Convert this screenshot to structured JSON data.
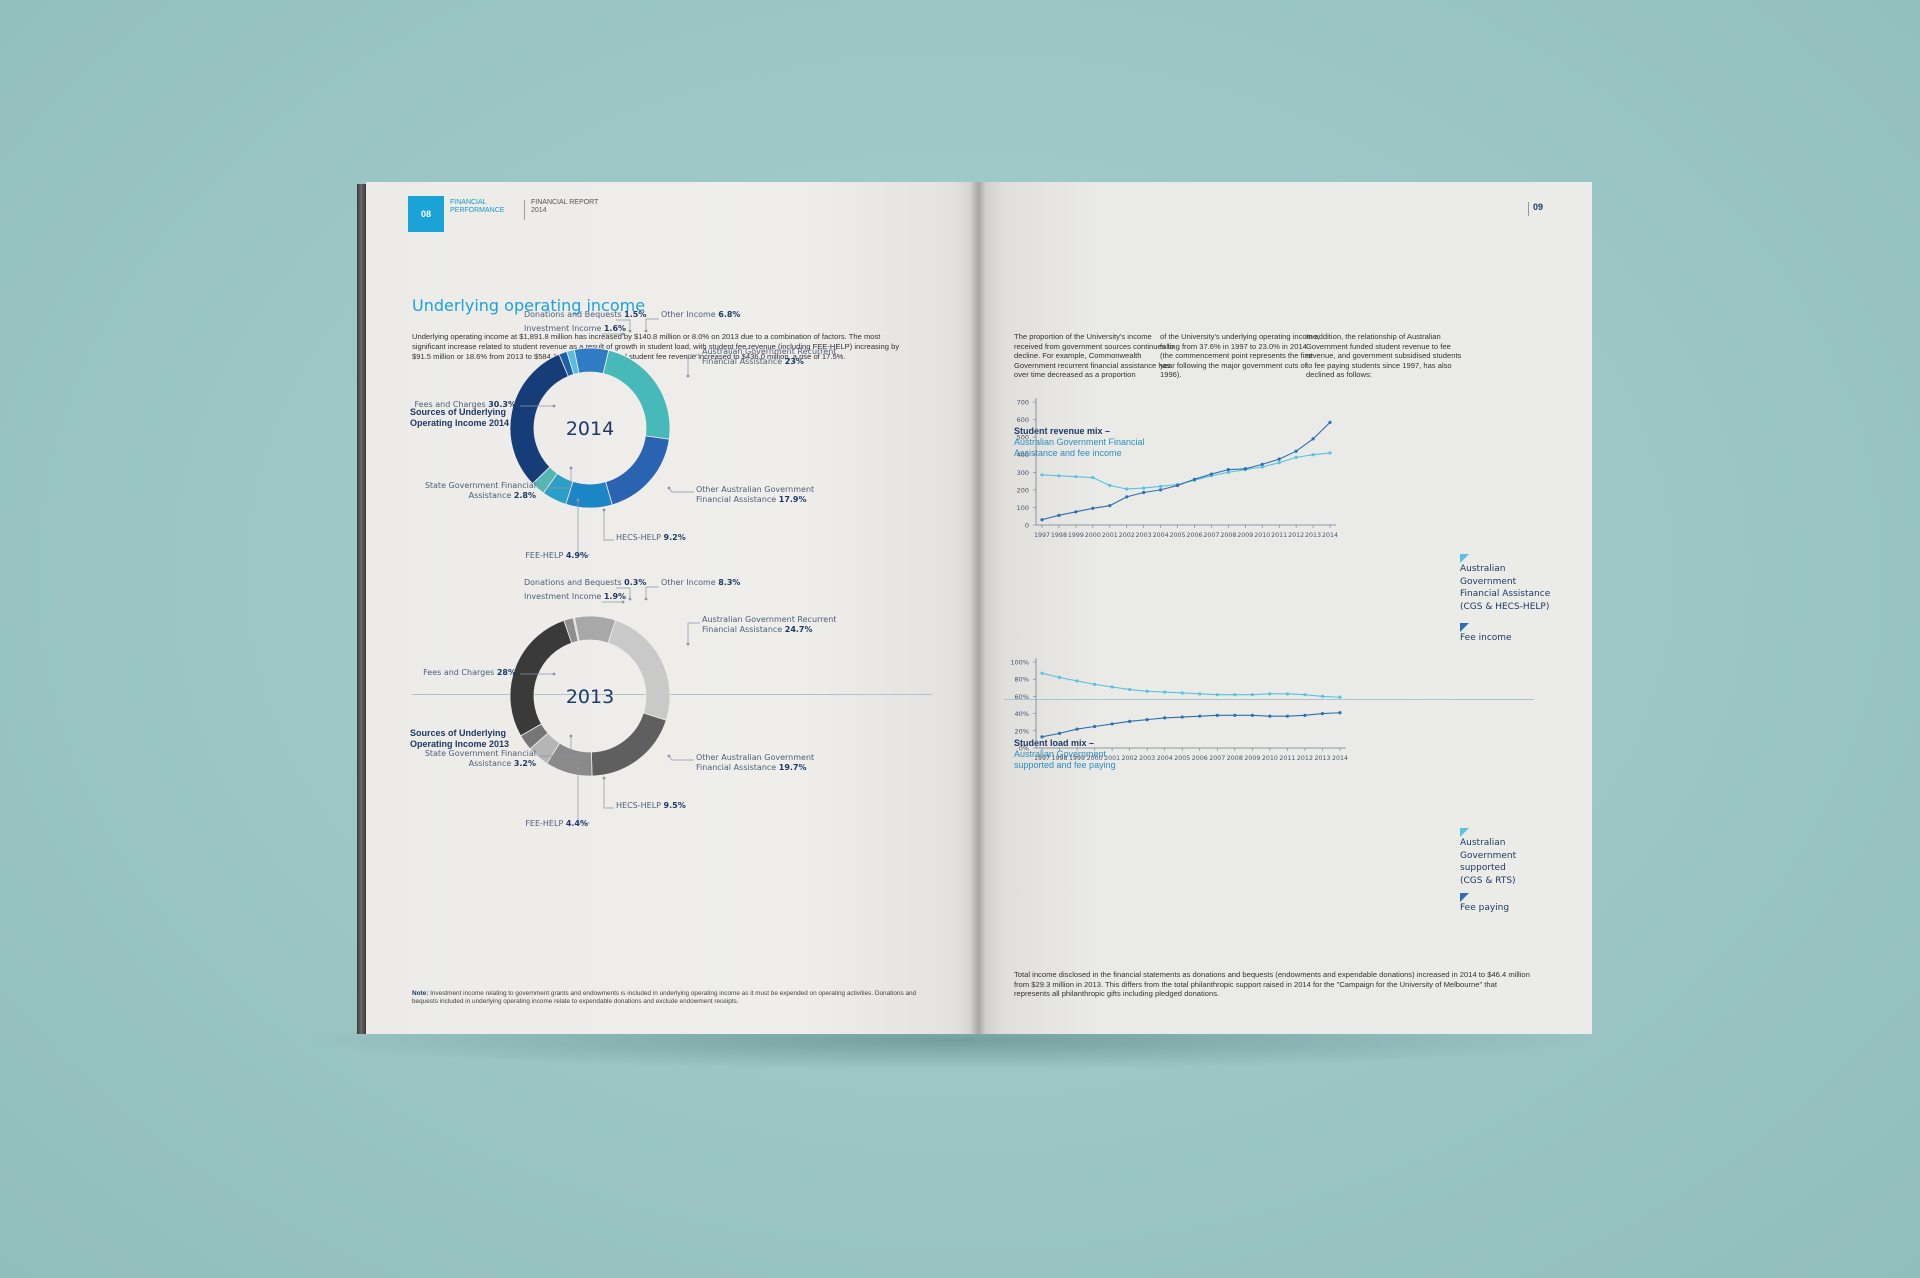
{
  "left_page": {
    "page_number": "08",
    "section": "FINANCIAL PERFORMANCE",
    "report": "FINANCIAL REPORT 2014",
    "heading": "Underlying operating income",
    "intro": "Underlying operating income at $1,891.8 million has increased by $140.8 million or 8.0% on 2013 due to a combination of factors. The most significant increase related to student revenue as a result of growth in student load, with student fee revenue (including FEE-HELP) increasing by $91.5 million or 18.6% from 2013 to $584.1 million. International student fee revenue increased to $436.0 million, a rise of 17.5%.",
    "note_label": "Note:",
    "note_text": "Investment income relating to government grants and endowments is included in underlying operating income as it must be expended on operating activities. Donations and bequests included in underlying operating income relate to expendable donations and exclude endowment receipts."
  },
  "right_page": {
    "page_number": "09",
    "col1": "The proportion of the University's income received from government sources continues to decline. For example, Commonwealth Government recurrent financial assistance has over time decreased as a proportion",
    "col2": "of the University's underlying operating income, falling from 37.6% in 1997 to 23.0% in 2014 (the commencement point represents the first year following the major government cuts of 1996).",
    "col3": "In addition, the relationship of Australian Government funded student revenue to fee revenue, and government subsidised students to fee paying students since 1997, has also declined as follows:",
    "bottom_text": "Total income disclosed in the financial statements as donations and bequests (endowments and expendable donations) increased in 2014 to $46.4 million from $29.3 million in 2013. This differs from the total philanthropic support raised in 2014 for the \"Campaign for the University of Melbourne\" that represents all philanthropic gifts including pledged donations."
  },
  "colors": {
    "accent": "#1aa3d6",
    "navy": "#1d3a66",
    "teal": "#4bb8b8",
    "light_blue": "#58c2e0",
    "line_dark": "#2d6fb0"
  },
  "chart_data": [
    {
      "type": "pie",
      "title_line1": "Sources of Underlying",
      "title_line2": "Operating Income 2014",
      "center_label": "2014",
      "slices": [
        {
          "label": "Other Income",
          "value": 6.8,
          "color": "#2f7cc4"
        },
        {
          "label": "Australian Government Recurrent Financial Assistance",
          "value": 23,
          "color": "#48b9b9"
        },
        {
          "label": "Other Australian Government Financial Assistance",
          "value": 17.9,
          "color": "#2a63b0"
        },
        {
          "label": "HECS-HELP",
          "value": 9.2,
          "color": "#1c85c6"
        },
        {
          "label": "FEE-HELP",
          "value": 4.9,
          "color": "#2c9ec8"
        },
        {
          "label": "State Government Financial Assistance",
          "value": 2.8,
          "color": "#56b6b4"
        },
        {
          "label": "Fees and Charges",
          "value": 30.3,
          "color": "#173d78"
        },
        {
          "label": "Investment Income",
          "value": 1.6,
          "color": "#1f5fa8"
        },
        {
          "label": "Donations and Bequests",
          "value": 1.5,
          "color": "#58bde0"
        }
      ],
      "labels": [
        {
          "name": "Donations and Bequests",
          "value": "1.5%"
        },
        {
          "name": "Investment Income",
          "value": "1.6%"
        },
        {
          "name": "Other Income",
          "value": "6.8%"
        },
        {
          "name": "Australian Government Recurrent",
          "name2": "Financial Assistance",
          "value": "23%"
        },
        {
          "name": "Fees and Charges",
          "value": "30.3%"
        },
        {
          "name": "Other Australian Government",
          "name2": "Financial Assistance",
          "value": "17.9%"
        },
        {
          "name": "State Government Financial",
          "name2": "Assistance",
          "value": "2.8%"
        },
        {
          "name": "HECS-HELP",
          "value": "9.2%"
        },
        {
          "name": "FEE-HELP",
          "value": "4.9%"
        }
      ]
    },
    {
      "type": "pie",
      "title_line1": "Sources of Underlying",
      "title_line2": "Operating Income 2013",
      "center_label": "2013",
      "slices": [
        {
          "label": "Other Income",
          "value": 8.3,
          "color": "#a8a8a8"
        },
        {
          "label": "Australian Government Recurrent Financial Assistance",
          "value": 24.7,
          "color": "#c9c9c9"
        },
        {
          "label": "Other Australian Government Financial Assistance",
          "value": 19.7,
          "color": "#5f5f5f"
        },
        {
          "label": "HECS-HELP",
          "value": 9.5,
          "color": "#8a8a8a"
        },
        {
          "label": "FEE-HELP",
          "value": 4.4,
          "color": "#b5b5b5"
        },
        {
          "label": "State Government Financial Assistance",
          "value": 3.2,
          "color": "#767676"
        },
        {
          "label": "Fees and Charges",
          "value": 28,
          "color": "#3a3a3a"
        },
        {
          "label": "Investment Income",
          "value": 1.9,
          "color": "#8f8f8f"
        },
        {
          "label": "Donations and Bequests",
          "value": 0.3,
          "color": "#cfcfcf"
        }
      ],
      "labels": [
        {
          "name": "Donations and Bequests",
          "value": "0.3%"
        },
        {
          "name": "Investment Income",
          "value": "1.9%"
        },
        {
          "name": "Other Income",
          "value": "8.3%"
        },
        {
          "name": "Australian Government Recurrent",
          "name2": "Financial Assistance",
          "value": "24.7%"
        },
        {
          "name": "Fees and Charges",
          "value": "28%"
        },
        {
          "name": "Other Australian Government",
          "name2": "Financial Assistance",
          "value": "19.7%"
        },
        {
          "name": "State Government Financial",
          "name2": "Assistance",
          "value": "3.2%"
        },
        {
          "name": "HECS-HELP",
          "value": "9.5%"
        },
        {
          "name": "FEE-HELP",
          "value": "4.4%"
        }
      ]
    },
    {
      "type": "line",
      "title": "Student revenue mix –",
      "subtitle_line1": "Australian Government Financial",
      "subtitle_line2": "Assistance and fee income",
      "x": [
        "1997",
        "1998",
        "1999",
        "2000",
        "2001",
        "2002",
        "2003",
        "2004",
        "2005",
        "2006",
        "2007",
        "2008",
        "2009",
        "2010",
        "2011",
        "2012",
        "2013",
        "2014"
      ],
      "yticks": [
        "0",
        "100",
        "200",
        "300",
        "400",
        "500",
        "600",
        "700"
      ],
      "ylim": [
        0,
        700
      ],
      "series": [
        {
          "legend_line1": "Australian",
          "legend_line2": "Government",
          "legend_line3": "Financial Assistance",
          "legend_line4": "(CGS & HECS-HELP)",
          "color": "#58c2e0",
          "values": [
            285,
            280,
            275,
            270,
            225,
            205,
            210,
            220,
            230,
            255,
            280,
            300,
            315,
            330,
            355,
            385,
            400,
            410
          ]
        },
        {
          "legend_line1": "Fee income",
          "color": "#2d6fb0",
          "values": [
            30,
            55,
            75,
            95,
            110,
            160,
            185,
            200,
            225,
            260,
            290,
            315,
            320,
            345,
            375,
            420,
            490,
            584
          ]
        }
      ]
    },
    {
      "type": "line",
      "title": "Student load mix –",
      "subtitle_line1": "Australian Government",
      "subtitle_line2": "supported and fee paying",
      "x": [
        "1997",
        "1998",
        "1999",
        "2000",
        "2001",
        "2002",
        "2003",
        "2004",
        "2005",
        "2006",
        "2007",
        "2008",
        "2009",
        "2010",
        "2011",
        "2012",
        "2013",
        "2014"
      ],
      "yticks": [
        "0%",
        "20%",
        "40%",
        "60%",
        "80%",
        "100%"
      ],
      "ylim": [
        0,
        100
      ],
      "series": [
        {
          "legend_line1": "Australian",
          "legend_line2": "Government",
          "legend_line3": "supported",
          "legend_line4": "(CGS & RTS)",
          "color": "#58c2e0",
          "values": [
            87,
            82,
            78,
            74,
            71,
            68,
            66,
            65,
            64,
            63,
            62,
            62,
            62,
            63,
            63,
            62,
            60,
            59
          ]
        },
        {
          "legend_line1": "Fee paying",
          "color": "#2d6fb0",
          "values": [
            13,
            17,
            22,
            25,
            28,
            31,
            33,
            35,
            36,
            37,
            38,
            38,
            38,
            37,
            37,
            38,
            40,
            41
          ]
        }
      ]
    }
  ]
}
